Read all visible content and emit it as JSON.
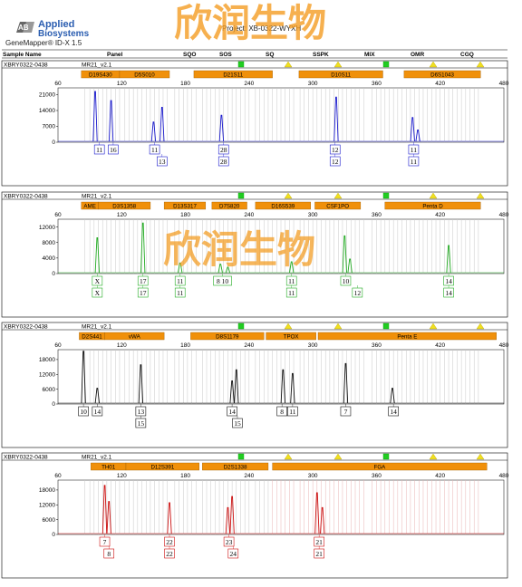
{
  "header": {
    "brand_line1": "Applied",
    "brand_line2": "Biosystems",
    "software": "GeneMapper® ID-X 1.5",
    "project": "Project: XB-0322-WYXH",
    "watermark": "欣润生物"
  },
  "columns": [
    "Sample Name",
    "Panel",
    "SQO",
    "SOS",
    "SQ",
    "SSPK",
    "MIX",
    "OMR",
    "CGQ"
  ],
  "colors": {
    "blue": "#1a1acc",
    "green": "#22aa22",
    "black": "#111111",
    "red": "#cc1111",
    "marker": "#f0900a",
    "flag_green": "#22cc22",
    "flag_yellow": "#f0e020"
  },
  "x_axis": {
    "min": 60,
    "max": 480,
    "ticks": [
      "60",
      "120",
      "180",
      "240",
      "300",
      "360",
      "420",
      "480"
    ]
  },
  "panels": [
    {
      "sample": "XBRY0322-0438",
      "panel": "MR21_v2.1",
      "dye": "blue",
      "y_ticks": [
        "21000",
        "14000",
        "7000",
        "0"
      ],
      "ymax": 24000,
      "markers": [
        {
          "label": "D19S430",
          "start": 82,
          "end": 118
        },
        {
          "label": "D5S010",
          "start": 118,
          "end": 165
        },
        {
          "label": "D21S11",
          "start": 188,
          "end": 262
        },
        {
          "label": "D10S11",
          "start": 287,
          "end": 366
        },
        {
          "label": "D6S1043",
          "start": 386,
          "end": 458
        }
      ],
      "peaks": [
        {
          "x": 95,
          "h": 22000
        },
        {
          "x": 110,
          "h": 18000
        },
        {
          "x": 150,
          "h": 8500
        },
        {
          "x": 158,
          "h": 15000
        },
        {
          "x": 214,
          "h": 11500
        },
        {
          "x": 322,
          "h": 19500
        },
        {
          "x": 394,
          "h": 10500
        },
        {
          "x": 399,
          "h": 5000
        }
      ],
      "calls": [
        {
          "x": 99,
          "row1": "11",
          "row2": ""
        },
        {
          "x": 112,
          "row1": "16",
          "row2": ""
        },
        {
          "x": 151,
          "row1": "11",
          "row2": ""
        },
        {
          "x": 158,
          "row1": "",
          "row2": "13"
        },
        {
          "x": 216,
          "row1": "28",
          "row2": "28"
        },
        {
          "x": 321,
          "row1": "12",
          "row2": "12"
        },
        {
          "x": 395,
          "row1": "11",
          "row2": "11"
        }
      ]
    },
    {
      "sample": "XBRY0322-0438",
      "panel": "MR21_v2.1",
      "dye": "green",
      "y_ticks": [
        "12000",
        "8000",
        "4000",
        "0"
      ],
      "ymax": 14000,
      "markers": [
        {
          "label": "AME",
          "start": 82,
          "end": 98
        },
        {
          "label": "D3S1358",
          "start": 98,
          "end": 147
        },
        {
          "label": "D13S317",
          "start": 160,
          "end": 199
        },
        {
          "label": "D7S820",
          "start": 205,
          "end": 238
        },
        {
          "label": "D16S539",
          "start": 246,
          "end": 298
        },
        {
          "label": "CSF1PO",
          "start": 302,
          "end": 345
        },
        {
          "label": "Penta D",
          "start": 368,
          "end": 458
        }
      ],
      "peaks": [
        {
          "x": 97,
          "h": 9000
        },
        {
          "x": 140,
          "h": 12800
        },
        {
          "x": 175,
          "h": 2500
        },
        {
          "x": 213,
          "h": 2200
        },
        {
          "x": 220,
          "h": 1400
        },
        {
          "x": 280,
          "h": 2800
        },
        {
          "x": 330,
          "h": 9500
        },
        {
          "x": 335,
          "h": 3500
        },
        {
          "x": 428,
          "h": 7000
        }
      ],
      "calls": [
        {
          "x": 97,
          "row1": "X",
          "row2": "X"
        },
        {
          "x": 140,
          "row1": "17",
          "row2": "17"
        },
        {
          "x": 175,
          "row1": "11",
          "row2": "11"
        },
        {
          "x": 215,
          "row1": "8 10",
          "row2": ""
        },
        {
          "x": 280,
          "row1": "11",
          "row2": "11"
        },
        {
          "x": 331,
          "row1": "10",
          "row2": ""
        },
        {
          "x": 342,
          "row1": "",
          "row2": "12"
        },
        {
          "x": 428,
          "row1": "14",
          "row2": "14"
        }
      ]
    },
    {
      "sample": "XBRY0322-0438",
      "panel": "MR21_v2.1",
      "dye": "black",
      "y_ticks": [
        "18000",
        "12000",
        "6000",
        "0"
      ],
      "ymax": 22000,
      "markers": [
        {
          "label": "D2S441",
          "start": 80,
          "end": 104
        },
        {
          "label": "vWA",
          "start": 104,
          "end": 160
        },
        {
          "label": "D8S1179",
          "start": 185,
          "end": 254
        },
        {
          "label": "TPOX",
          "start": 256,
          "end": 303
        },
        {
          "label": "Penta E",
          "start": 305,
          "end": 473
        }
      ],
      "peaks": [
        {
          "x": 84,
          "h": 21000
        },
        {
          "x": 97,
          "h": 6000
        },
        {
          "x": 138,
          "h": 15500
        },
        {
          "x": 224,
          "h": 9000
        },
        {
          "x": 228,
          "h": 13500
        },
        {
          "x": 272,
          "h": 13500
        },
        {
          "x": 281,
          "h": 12000
        },
        {
          "x": 331,
          "h": 16000
        },
        {
          "x": 375,
          "h": 6000
        }
      ],
      "calls": [
        {
          "x": 84,
          "row1": "10",
          "row2": ""
        },
        {
          "x": 97,
          "row1": "14",
          "row2": ""
        },
        {
          "x": 138,
          "row1": "13",
          "row2": "15"
        },
        {
          "x": 224,
          "row1": "14",
          "row2": ""
        },
        {
          "x": 229,
          "row1": "",
          "row2": "15"
        },
        {
          "x": 271,
          "row1": "8",
          "row2": ""
        },
        {
          "x": 281,
          "row1": "11",
          "row2": ""
        },
        {
          "x": 331,
          "row1": "7",
          "row2": ""
        },
        {
          "x": 376,
          "row1": "14",
          "row2": ""
        }
      ]
    },
    {
      "sample": "XBRY0322-0438",
      "panel": "MR21_v2.1",
      "dye": "red",
      "y_ticks": [
        "18000",
        "12000",
        "6000",
        "0"
      ],
      "ymax": 22000,
      "markers": [
        {
          "label": "TH01",
          "start": 91,
          "end": 124
        },
        {
          "label": "D12S391",
          "start": 124,
          "end": 193
        },
        {
          "label": "D2S1338",
          "start": 196,
          "end": 258
        },
        {
          "label": "FGA",
          "start": 262,
          "end": 464
        }
      ],
      "peaks": [
        {
          "x": 104,
          "h": 19500
        },
        {
          "x": 108,
          "h": 13000
        },
        {
          "x": 165,
          "h": 12500
        },
        {
          "x": 220,
          "h": 10500
        },
        {
          "x": 224,
          "h": 15000
        },
        {
          "x": 304,
          "h": 16500
        },
        {
          "x": 309,
          "h": 10500
        }
      ],
      "calls": [
        {
          "x": 104,
          "row1": "7",
          "row2": ""
        },
        {
          "x": 108,
          "row1": "",
          "row2": "8"
        },
        {
          "x": 165,
          "row1": "22",
          "row2": "22"
        },
        {
          "x": 221,
          "row1": "23",
          "row2": ""
        },
        {
          "x": 225,
          "row1": "",
          "row2": "24"
        },
        {
          "x": 306,
          "row1": "21",
          "row2": "21"
        }
      ]
    }
  ]
}
